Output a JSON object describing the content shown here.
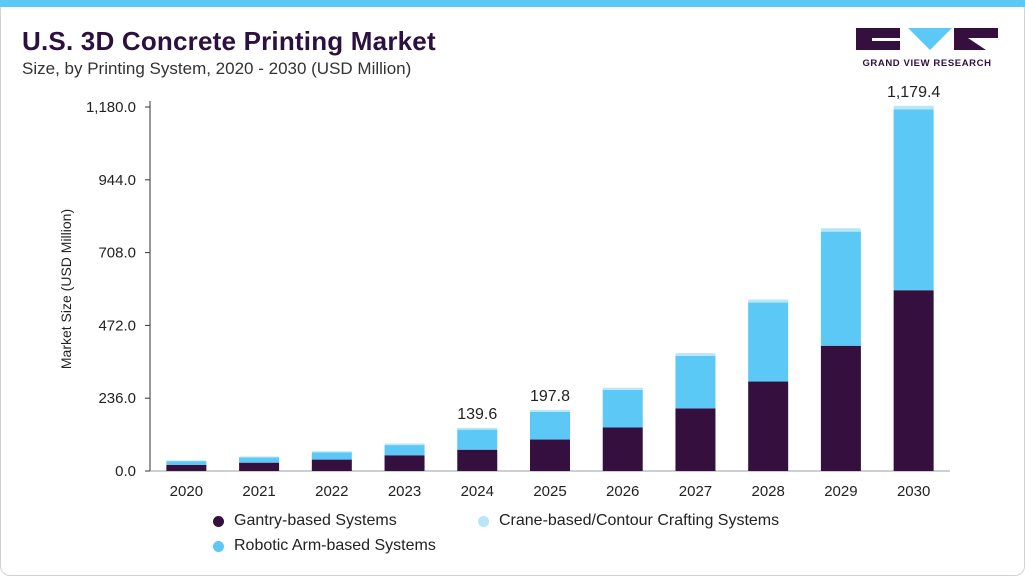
{
  "header": {
    "title": "U.S. 3D Concrete Printing Market",
    "subtitle": "Size, by Printing System, 2020 - 2030 (USD Million)",
    "logo_text": "GRAND VIEW RESEARCH"
  },
  "colors": {
    "accent_bar": "#5bc8f5",
    "gantry": "#35103f",
    "robotic": "#5bc8f5",
    "crane": "#b9e6f7",
    "title": "#2c1140"
  },
  "chart_data": {
    "type": "bar",
    "stacked": true,
    "title": "U.S. 3D Concrete Printing Market",
    "subtitle": "Size, by Printing System, 2020 - 2030 (USD Million)",
    "xlabel": "",
    "ylabel": "Market Size (USD Million)",
    "ylim": [
      0,
      1180
    ],
    "yticks": [
      0,
      236,
      472,
      708,
      944,
      1180
    ],
    "ytick_labels": [
      "0.0",
      "236.0",
      "472.0",
      "708.0",
      "944.0",
      "1,180.0"
    ],
    "grid": false,
    "legend_position": "bottom",
    "categories": [
      "2020",
      "2021",
      "2022",
      "2023",
      "2024",
      "2025",
      "2026",
      "2027",
      "2028",
      "2029",
      "2030"
    ],
    "series": [
      {
        "name": "Gantry-based Systems",
        "color": "#35103f",
        "values": [
          20,
          27,
          37,
          51,
          69,
          102,
          141,
          203,
          290,
          406,
          586
        ]
      },
      {
        "name": "Robotic Arm-based Systems",
        "color": "#5bc8f5",
        "values": [
          12,
          17,
          23,
          33,
          65,
          90,
          122,
          170,
          256,
          370,
          586
        ]
      },
      {
        "name": "Crane-based/Contour Crafting Systems",
        "color": "#b9e6f7",
        "values": [
          2,
          3,
          4,
          5,
          6,
          6,
          7,
          9,
          10,
          11,
          12
        ]
      }
    ],
    "data_labels": [
      {
        "category": "2024",
        "text": "139.6"
      },
      {
        "category": "2025",
        "text": "197.8"
      },
      {
        "category": "2030",
        "text": "1,179.4"
      }
    ]
  },
  "legend": {
    "items": [
      {
        "label": "Gantry-based Systems",
        "color": "#35103f"
      },
      {
        "label": "Crane-based/Contour Crafting Systems",
        "color": "#b9e6f7"
      },
      {
        "label": "Robotic Arm-based Systems",
        "color": "#5bc8f5"
      }
    ]
  }
}
